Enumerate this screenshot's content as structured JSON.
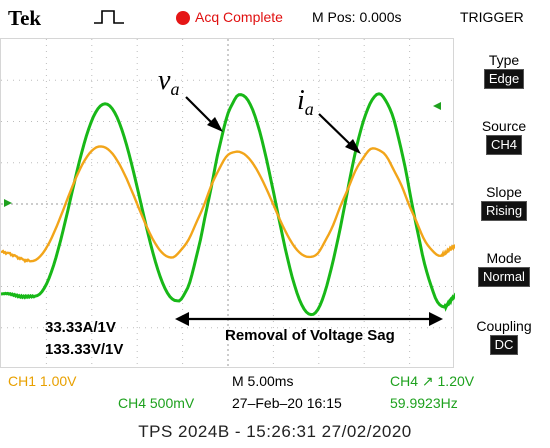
{
  "header": {
    "brand": "Tek",
    "acq_status": "Acq Complete",
    "mpos": "M Pos: 0.000s",
    "trigger_title": "TRIGGER"
  },
  "menu": {
    "type": {
      "label": "Type",
      "value": "Edge"
    },
    "source": {
      "label": "Source",
      "value": "CH4"
    },
    "slope": {
      "label": "Slope",
      "value": "Rising"
    },
    "mode": {
      "label": "Mode",
      "value": "Normal"
    },
    "coupling": {
      "label": "Coupling",
      "value": "DC"
    }
  },
  "annotations": {
    "va_main": "v",
    "va_sub": "a",
    "ia_main": "i",
    "ia_sub": "a",
    "sag_label": "Removal of Voltage Sag",
    "scale_current": "33.33A/1V",
    "scale_voltage": "133.33V/1V"
  },
  "status": {
    "ch1": "CH1  1.00V",
    "ch4_scale": "CH4  500mV",
    "timebase": "M 5.00ms",
    "datetime": "27–Feb–20 16:15",
    "ch4_trigger": "CH4 ↗ 1.20V",
    "frequency": "59.9923Hz"
  },
  "footer": "TPS 2024B - 15:26:31   27/02/2020",
  "colors": {
    "voltage": "#18b818",
    "current": "#f2a51a",
    "accent_red": "#e51616"
  }
}
